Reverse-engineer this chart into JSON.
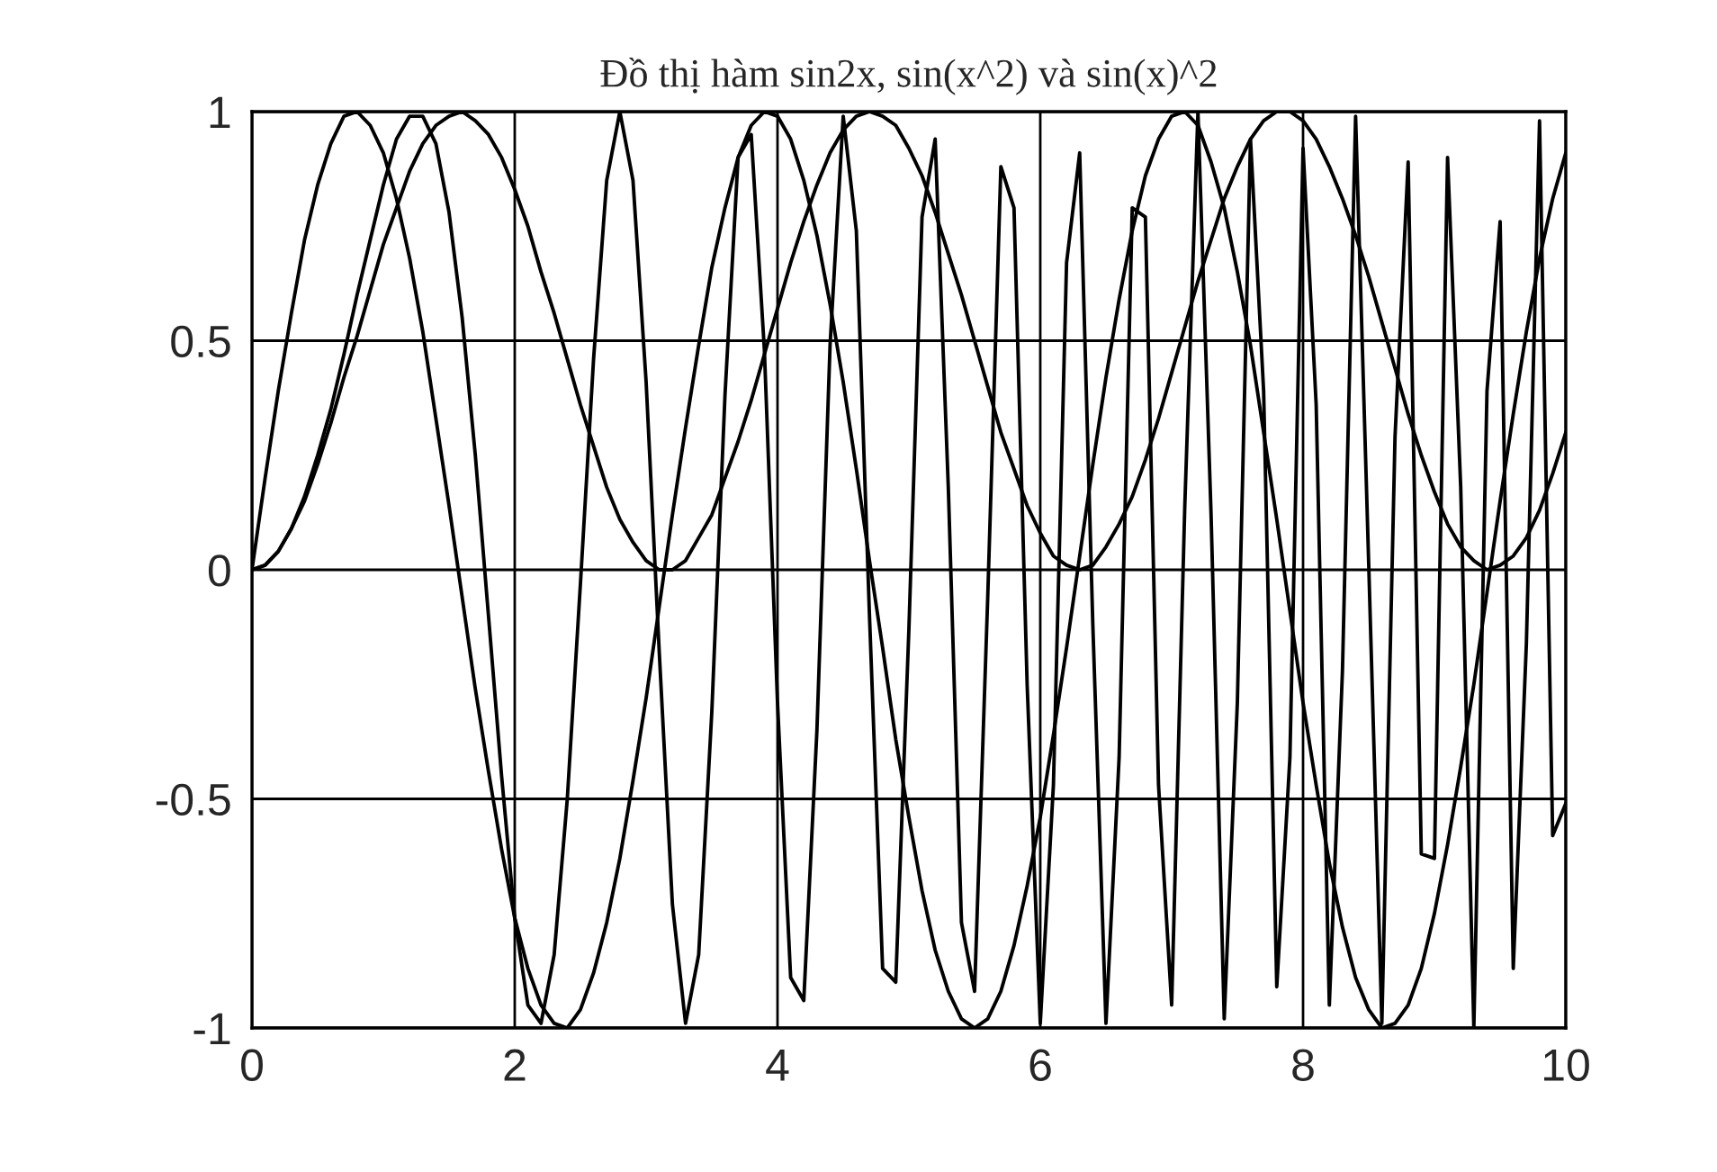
{
  "chart_data": {
    "type": "line",
    "title": "Đồ thị hàm sin2x, sin(x^2) và sin(x)^2",
    "x": [
      0,
      0.1,
      0.2,
      0.3,
      0.4,
      0.5,
      0.6,
      0.7,
      0.8,
      0.9,
      1,
      1.1,
      1.2,
      1.3,
      1.4,
      1.5,
      1.6,
      1.7,
      1.8,
      1.9,
      2,
      2.1,
      2.2,
      2.3,
      2.4,
      2.5,
      2.6,
      2.7,
      2.8,
      2.9,
      3,
      3.1,
      3.2,
      3.3,
      3.4,
      3.5,
      3.6,
      3.7,
      3.8,
      3.9,
      4,
      4.1,
      4.2,
      4.3,
      4.4,
      4.5,
      4.6,
      4.7,
      4.8,
      4.9,
      5,
      5.1,
      5.2,
      5.3,
      5.4,
      5.5,
      5.6,
      5.7,
      5.8,
      5.9,
      6,
      6.1,
      6.2,
      6.3,
      6.4,
      6.5,
      6.6,
      6.7,
      6.8,
      6.9,
      7,
      7.1,
      7.2,
      7.3,
      7.4,
      7.5,
      7.6,
      7.7,
      7.8,
      7.9,
      8,
      8.1,
      8.2,
      8.3,
      8.4,
      8.5,
      8.6,
      8.7,
      8.8,
      8.9,
      9,
      9.1,
      9.2,
      9.3,
      9.4,
      9.5,
      9.6,
      9.7,
      9.8,
      9.9,
      10
    ],
    "series": [
      {
        "color": "#000000",
        "values": [
          0.0,
          0.2,
          0.39,
          0.56,
          0.72,
          0.84,
          0.93,
          0.99,
          1.0,
          0.97,
          0.91,
          0.81,
          0.68,
          0.52,
          0.33,
          0.14,
          -0.06,
          -0.26,
          -0.44,
          -0.61,
          -0.76,
          -0.87,
          -0.95,
          -0.99,
          -1.0,
          -0.96,
          -0.88,
          -0.77,
          -0.63,
          -0.46,
          -0.28,
          -0.08,
          0.12,
          0.31,
          0.49,
          0.66,
          0.79,
          0.9,
          0.97,
          1.0,
          0.99,
          0.94,
          0.85,
          0.73,
          0.58,
          0.41,
          0.22,
          0.02,
          -0.17,
          -0.37,
          -0.54,
          -0.7,
          -0.83,
          -0.92,
          -0.98,
          -1.0,
          -0.98,
          -0.92,
          -0.82,
          -0.69,
          -0.54,
          -0.36,
          -0.17,
          0.03,
          0.23,
          0.42,
          0.59,
          0.74,
          0.86,
          0.94,
          0.99,
          1.0,
          0.97,
          0.89,
          0.79,
          0.65,
          0.49,
          0.3,
          0.11,
          -0.09,
          -0.29,
          -0.47,
          -0.64,
          -0.78,
          -0.89,
          -0.96,
          -1.0,
          -0.99,
          -0.95,
          -0.87,
          -0.75,
          -0.6,
          -0.43,
          -0.25,
          -0.05,
          0.15,
          0.34,
          0.52,
          0.68,
          0.81,
          0.91
        ]
      },
      {
        "color": "#000000",
        "values": [
          0.0,
          0.01,
          0.04,
          0.09,
          0.16,
          0.25,
          0.35,
          0.47,
          0.6,
          0.72,
          0.84,
          0.94,
          0.99,
          0.99,
          0.93,
          0.78,
          0.55,
          0.25,
          -0.1,
          -0.45,
          -0.76,
          -0.95,
          -0.99,
          -0.84,
          -0.5,
          -0.03,
          0.46,
          0.85,
          1.0,
          0.85,
          0.41,
          -0.18,
          -0.73,
          -0.99,
          -0.84,
          -0.31,
          0.38,
          0.9,
          0.95,
          0.48,
          -0.29,
          -0.89,
          -0.94,
          -0.35,
          0.49,
          0.99,
          0.74,
          -0.1,
          -0.87,
          -0.9,
          -0.13,
          0.77,
          0.94,
          0.18,
          -0.77,
          -0.92,
          -0.06,
          0.88,
          0.79,
          -0.25,
          -0.99,
          -0.47,
          0.67,
          0.91,
          -0.12,
          -0.99,
          -0.41,
          0.79,
          0.77,
          -0.47,
          -0.95,
          0.14,
          1.0,
          0.12,
          -0.98,
          -0.29,
          0.94,
          0.39,
          -0.91,
          -0.41,
          0.92,
          0.36,
          -0.95,
          -0.22,
          0.99,
          0.01,
          -0.99,
          0.29,
          0.89,
          -0.62,
          -0.63,
          0.9,
          0.18,
          -1.0,
          0.39,
          0.76,
          -0.87,
          -0.16,
          0.98,
          -0.58,
          -0.51
        ]
      },
      {
        "color": "#000000",
        "values": [
          0.0,
          0.01,
          0.04,
          0.09,
          0.15,
          0.23,
          0.32,
          0.42,
          0.51,
          0.61,
          0.71,
          0.79,
          0.87,
          0.93,
          0.97,
          0.99,
          1.0,
          0.98,
          0.95,
          0.9,
          0.83,
          0.75,
          0.65,
          0.56,
          0.46,
          0.36,
          0.27,
          0.18,
          0.11,
          0.06,
          0.02,
          0.0,
          0.0,
          0.02,
          0.07,
          0.12,
          0.2,
          0.28,
          0.37,
          0.47,
          0.57,
          0.67,
          0.76,
          0.84,
          0.91,
          0.96,
          0.99,
          1.0,
          0.99,
          0.97,
          0.92,
          0.86,
          0.78,
          0.69,
          0.6,
          0.5,
          0.4,
          0.3,
          0.22,
          0.14,
          0.08,
          0.03,
          0.01,
          0.0,
          0.01,
          0.05,
          0.1,
          0.16,
          0.24,
          0.33,
          0.43,
          0.53,
          0.63,
          0.72,
          0.81,
          0.88,
          0.94,
          0.98,
          1.0,
          1.0,
          0.98,
          0.94,
          0.88,
          0.81,
          0.73,
          0.64,
          0.54,
          0.44,
          0.34,
          0.25,
          0.17,
          0.1,
          0.05,
          0.02,
          0.0,
          0.01,
          0.03,
          0.07,
          0.13,
          0.21,
          0.3
        ]
      }
    ],
    "xlim": [
      0,
      10
    ],
    "ylim": [
      -1,
      1
    ],
    "xticks": [
      0,
      2,
      4,
      6,
      8,
      10
    ],
    "yticks": [
      1,
      0.5,
      0,
      -0.5,
      -1
    ],
    "grid": true,
    "legend": false
  }
}
